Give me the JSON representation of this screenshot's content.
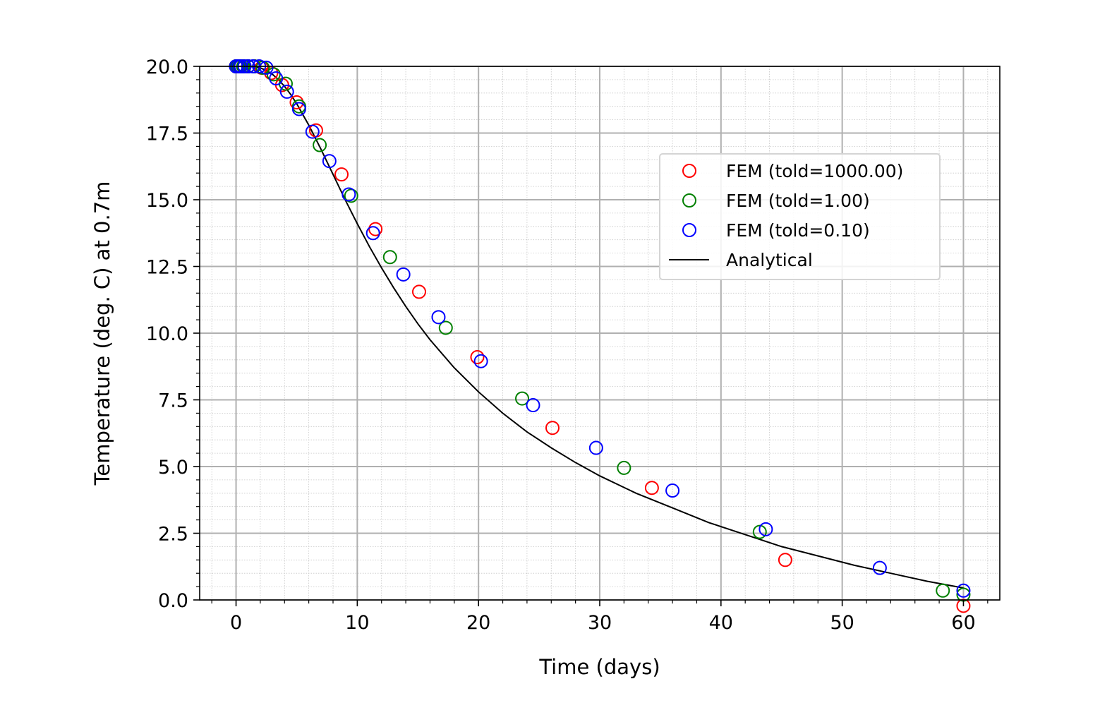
{
  "chart_data": {
    "type": "scatter",
    "title": "",
    "xlabel": "Time (days)",
    "ylabel": "Temperature (deg. C) at 0.7m",
    "xlim": [
      -3,
      63
    ],
    "ylim": [
      0,
      20
    ],
    "xticks": [
      0,
      10,
      20,
      30,
      40,
      50,
      60
    ],
    "xtick_labels": [
      "0",
      "10",
      "20",
      "30",
      "40",
      "50",
      "60"
    ],
    "yticks": [
      0,
      2.5,
      5,
      7.5,
      10,
      12.5,
      15,
      17.5,
      20
    ],
    "ytick_labels": [
      "0.0",
      "2.5",
      "5.0",
      "7.5",
      "10.0",
      "12.5",
      "15.0",
      "17.5",
      "20.0"
    ],
    "grid": "major and minor",
    "legend_position": "upper-right",
    "series": [
      {
        "name": "FEM (told=1000.00)",
        "kind": "open-circle",
        "color": "#ff0000",
        "x": [
          0,
          0.1,
          0.3,
          0.6,
          1.0,
          1.5,
          2.1,
          2.9,
          3.8,
          5.0,
          6.6,
          8.7,
          11.5,
          15.1,
          19.9,
          26.1,
          34.3,
          45.3,
          60
        ],
        "y": [
          20.0,
          20.0,
          20.0,
          20.0,
          20.0,
          20.0,
          19.95,
          19.75,
          19.3,
          18.65,
          17.6,
          15.95,
          13.9,
          11.55,
          9.1,
          6.45,
          4.2,
          1.5,
          -0.22
        ]
      },
      {
        "name": "FEM (told=1.00)",
        "kind": "open-circle",
        "color": "#008000",
        "x": [
          0,
          0.1,
          0.3,
          0.6,
          1.0,
          1.5,
          2.2,
          3.1,
          4.1,
          5.2,
          6.9,
          9.5,
          12.7,
          17.3,
          23.6,
          32.0,
          43.2,
          58.3,
          60
        ],
        "y": [
          20.0,
          20.0,
          20.0,
          20.0,
          20.0,
          20.0,
          19.95,
          19.7,
          19.35,
          18.5,
          17.05,
          15.15,
          12.85,
          10.2,
          7.55,
          4.95,
          2.55,
          0.35,
          0.2
        ]
      },
      {
        "name": "FEM (told=0.10)",
        "kind": "open-circle",
        "color": "#0000ff",
        "x": [
          0,
          0.2,
          0.4,
          0.7,
          1.0,
          1.4,
          1.9,
          2.5,
          3.3,
          4.2,
          5.2,
          6.3,
          7.7,
          9.3,
          11.3,
          13.8,
          16.7,
          20.2,
          24.5,
          29.7,
          36.0,
          43.7,
          53.1,
          60
        ],
        "y": [
          20.0,
          20.0,
          20.0,
          20.0,
          20.0,
          20.0,
          20.0,
          19.95,
          19.55,
          19.05,
          18.4,
          17.55,
          16.45,
          15.2,
          13.75,
          12.2,
          10.6,
          8.95,
          7.3,
          5.7,
          4.1,
          2.65,
          1.2,
          0.35
        ]
      },
      {
        "name": "Analytical",
        "kind": "line",
        "color": "#000000",
        "x": [
          0,
          0.5,
          1,
          1.5,
          2,
          2.5,
          3,
          3.5,
          4,
          4.5,
          5,
          5.5,
          6,
          7,
          8,
          9,
          10,
          11,
          12,
          13,
          14,
          15,
          16,
          18,
          20,
          22,
          24,
          26,
          28,
          30,
          33,
          36,
          39,
          42,
          45,
          48,
          51,
          54,
          57,
          60
        ],
        "y": [
          20.0,
          20.0,
          20.0,
          19.98,
          19.94,
          19.85,
          19.7,
          19.5,
          19.25,
          18.95,
          18.6,
          18.2,
          17.8,
          16.9,
          15.95,
          15.0,
          14.1,
          13.25,
          12.45,
          11.7,
          11.0,
          10.35,
          9.75,
          8.7,
          7.8,
          7.0,
          6.3,
          5.7,
          5.15,
          4.65,
          4.0,
          3.45,
          2.9,
          2.45,
          2.0,
          1.65,
          1.3,
          1.0,
          0.7,
          0.45
        ]
      }
    ]
  }
}
